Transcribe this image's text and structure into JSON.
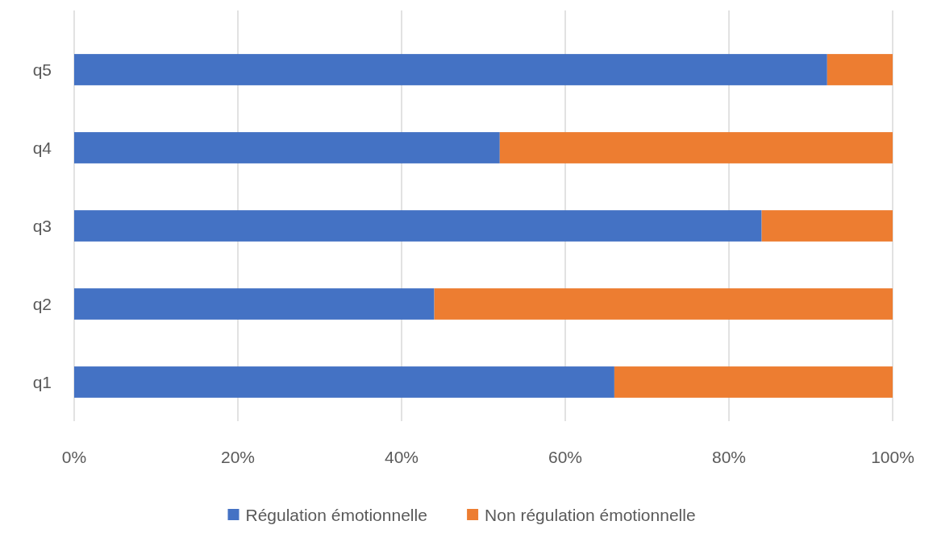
{
  "chart_data": {
    "type": "bar",
    "orientation": "horizontal",
    "stacked": true,
    "categories": [
      "q5",
      "q4",
      "q3",
      "q2",
      "q1"
    ],
    "series": [
      {
        "name": "Régulation émotionnelle",
        "color": "#4472c4",
        "values": [
          92,
          52,
          84,
          44,
          66
        ]
      },
      {
        "name": "Non régulation émotionnelle",
        "color": "#ed7d31",
        "values": [
          8,
          48,
          16,
          56,
          34
        ]
      }
    ],
    "xlim": [
      0,
      100
    ],
    "xticks": [
      {
        "value": 0,
        "label": "0%"
      },
      {
        "value": 20,
        "label": "20%"
      },
      {
        "value": 40,
        "label": "40%"
      },
      {
        "value": 60,
        "label": "60%"
      },
      {
        "value": 80,
        "label": "80%"
      },
      {
        "value": 100,
        "label": "100%"
      }
    ],
    "grid": "x",
    "legend": "bottom"
  }
}
